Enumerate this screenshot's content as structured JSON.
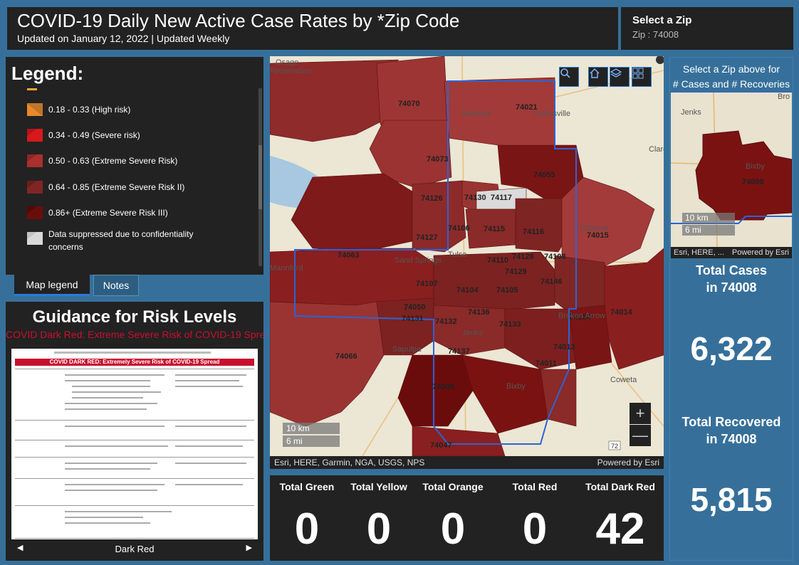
{
  "header": {
    "title": "COVID-19 Daily New Active Case Rates by *Zip Code",
    "subtitle": "Updated on January 12, 2022 | Updated Weekly"
  },
  "zip_selector": {
    "label": "Select a Zip",
    "value": "Zip : 74008"
  },
  "legend": {
    "title": "Legend:",
    "items": [
      {
        "label": "0.18 - 0.33 (High risk)",
        "color": "#e8892a"
      },
      {
        "label": "0.34 - 0.49 (Severe risk)",
        "color": "#d7191c"
      },
      {
        "label": "0.50 - 0.63 (Extreme Severe Risk)",
        "color": "#a8302e"
      },
      {
        "label": "0.64 - 0.85 (Extreme Severe Risk II)",
        "color": "#7f2624"
      },
      {
        "label": "0.86+ (Extreme Severe Risk III)",
        "color": "#6b0c0c"
      },
      {
        "label": "Data suppressed due to confidentiality",
        "label2": "concerns",
        "color": "#d9d9d9"
      }
    ]
  },
  "tabs": {
    "legend": "Map legend",
    "notes": "Notes"
  },
  "guidance": {
    "title": "Guidance for Risk Levels",
    "subtitle": "COVID Dark Red: Extreme Severe Risk of COVID-19 Spread",
    "doc_heading": "COVID DARK RED:  Extremely Severe Risk of COVID-19 Spread",
    "carousel_label": "Dark Red"
  },
  "map": {
    "zip_labels": [
      "74070",
      "74021",
      "74073",
      "74055",
      "74126",
      "74130",
      "74117",
      "74127",
      "74106",
      "74115",
      "74116",
      "74015",
      "74063",
      "74110",
      "74128",
      "74108",
      "74129",
      "74107",
      "74104",
      "74146",
      "74105",
      "74134",
      "74050",
      "74136",
      "74012",
      "74014",
      "74131",
      "74132",
      "74137",
      "74133",
      "74066",
      "74011",
      "74008",
      "74047"
    ],
    "place_labels": [
      "Osage",
      "Reservation",
      "Skiatook",
      "Collinsville",
      "Claremore",
      "Catoosa",
      "Sand Springs",
      "Tulsa",
      "Broken Arrow",
      "Jenks",
      "Sapulpa",
      "Bixby",
      "Coweta",
      "Mannford"
    ],
    "scale_km": "10 km",
    "scale_mi": "6 mi",
    "attribution": "Esri, HERE, Garmin, NGA, USGS, NPS",
    "powered_by": "Powered by Esri",
    "road_badge": "72"
  },
  "totals": [
    {
      "label": "Total Green",
      "value": "0"
    },
    {
      "label": "Total Yellow",
      "value": "0"
    },
    {
      "label": "Total Orange",
      "value": "0"
    },
    {
      "label": "Total Red",
      "value": "0"
    },
    {
      "label": "Total Dark Red",
      "value": "42"
    }
  ],
  "right_panel": {
    "hint_line1": "Select a Zip above for",
    "hint_line2": "# Cases and # Recoveries",
    "mini_places": [
      "Jenks",
      "Bixby",
      "Bro"
    ],
    "mini_zip": "74008",
    "mini_scale_km": "10 km",
    "mini_scale_mi": "6 mi",
    "mini_attribution": "Esri, HERE, ...",
    "mini_powered": "Powered by Esri",
    "cases_label1": "Total Cases",
    "cases_label2": "in 74008",
    "cases_value": "6,322",
    "recovered_label1": "Total Recovered",
    "recovered_label2": "in 74008",
    "recovered_value": "5,815"
  }
}
